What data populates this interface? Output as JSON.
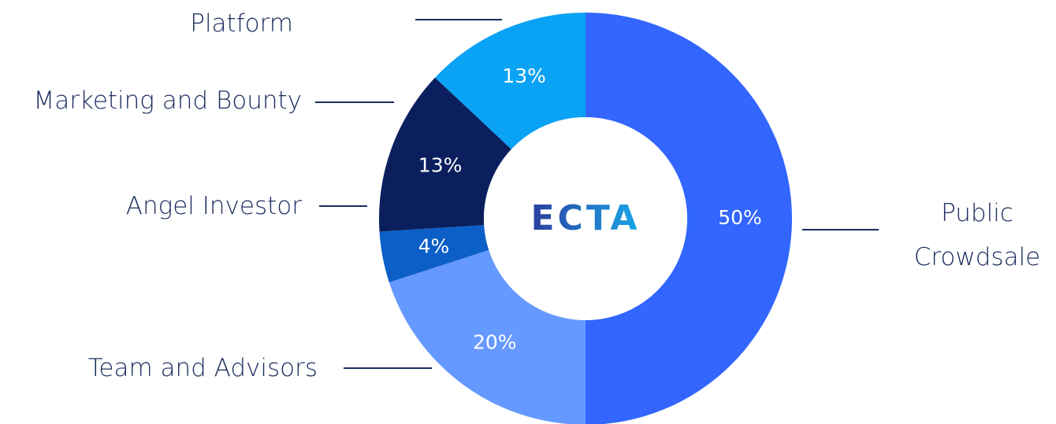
{
  "chart_data": {
    "type": "donut",
    "logo": "ECTA",
    "categories": [
      "Public Crowdsale",
      "Team and Advisors",
      "Angel Investor",
      "Marketing and Bounty",
      "Platform"
    ],
    "values": [
      50,
      20,
      4,
      13,
      13
    ],
    "value_labels": [
      "50%",
      "20%",
      "4%",
      "13%",
      "13%"
    ],
    "colors": [
      "#3366ff",
      "#6699ff",
      "#0b5fc7",
      "#0b1f5e",
      "#0aa2f5"
    ]
  }
}
